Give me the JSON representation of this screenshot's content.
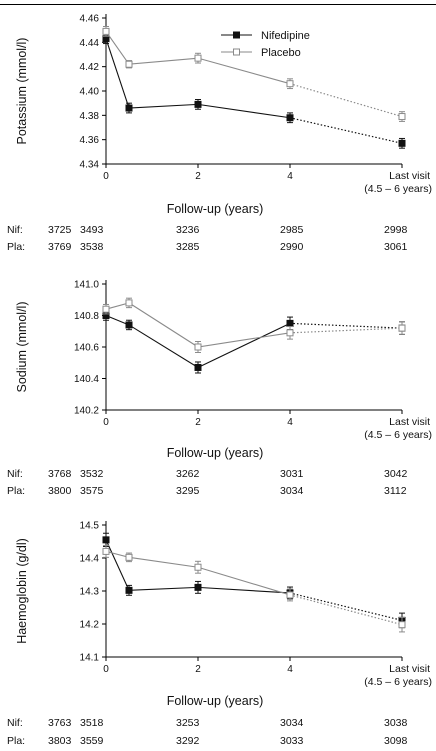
{
  "legend": {
    "items": [
      {
        "label": "Nifedipine",
        "marker": "filled-square",
        "color": "#111111"
      },
      {
        "label": "Placebo",
        "marker": "open-square",
        "color": "#8a8a8a"
      }
    ]
  },
  "chart_data": [
    {
      "type": "line",
      "ylabel": "Potassium (mmol/l)",
      "xlabel": "Follow-up (years)",
      "ylim": [
        4.34,
        4.46
      ],
      "yticks": [
        "4.34",
        "4.36",
        "4.38",
        "4.40",
        "4.42",
        "4.44",
        "4.46"
      ],
      "xticks": [
        "0",
        "2",
        "4"
      ],
      "last_visit_label": [
        "Last visit",
        "(4.5 – 6 years)"
      ],
      "x": [
        0,
        0.5,
        2,
        4,
        6
      ],
      "series": [
        {
          "name": "Nifedipine",
          "values": [
            4.443,
            4.386,
            4.389,
            4.378,
            4.357
          ],
          "err": [
            0.004,
            0.004,
            0.004,
            0.004,
            0.004
          ]
        },
        {
          "name": "Placebo",
          "values": [
            4.449,
            4.422,
            4.427,
            4.406,
            4.379
          ],
          "err": [
            0.004,
            0.003,
            0.004,
            0.004,
            0.004
          ]
        }
      ],
      "n_table": {
        "rows": [
          {
            "label": "Nif:",
            "counts": [
              "3725",
              "3493",
              "3236",
              "2985",
              "2998"
            ]
          },
          {
            "label": "Pla:",
            "counts": [
              "3769",
              "3538",
              "3285",
              "2990",
              "3061"
            ]
          }
        ]
      }
    },
    {
      "type": "line",
      "ylabel": "Sodium (mmol/l)",
      "xlabel": "Follow-up (years)",
      "ylim": [
        140.2,
        141.0
      ],
      "yticks": [
        "140.2",
        "140.4",
        "140.6",
        "140.8",
        "141.0"
      ],
      "xticks": [
        "0",
        "2",
        "4"
      ],
      "last_visit_label": [
        "Last visit",
        "(4.5 – 6 years)"
      ],
      "x": [
        0,
        0.5,
        2,
        4,
        6
      ],
      "series": [
        {
          "name": "Nifedipine",
          "values": [
            140.8,
            140.74,
            140.47,
            140.75,
            140.72
          ],
          "err": [
            0.03,
            0.03,
            0.035,
            0.04,
            0.04
          ]
        },
        {
          "name": "Placebo",
          "values": [
            140.84,
            140.88,
            140.6,
            140.69,
            140.72
          ],
          "err": [
            0.03,
            0.03,
            0.035,
            0.04,
            0.04
          ]
        }
      ],
      "n_table": {
        "rows": [
          {
            "label": "Nif:",
            "counts": [
              "3768",
              "3532",
              "3262",
              "3031",
              "3042"
            ]
          },
          {
            "label": "Pla:",
            "counts": [
              "3800",
              "3575",
              "3295",
              "3034",
              "3112"
            ]
          }
        ]
      }
    },
    {
      "type": "line",
      "ylabel": "Haemoglobin (g/dl)",
      "xlabel": "Follow-up (years)",
      "ylim": [
        14.1,
        14.5
      ],
      "yticks": [
        "14.1",
        "14.2",
        "14.3",
        "14.4",
        "14.5"
      ],
      "xticks": [
        "0",
        "2",
        "4"
      ],
      "last_visit_label": [
        "Last visit",
        "(4.5 – 6 years)"
      ],
      "x": [
        0,
        0.5,
        2,
        4,
        6
      ],
      "series": [
        {
          "name": "Nifedipine",
          "values": [
            14.455,
            14.302,
            14.311,
            14.294,
            14.211
          ],
          "err": [
            0.02,
            0.015,
            0.018,
            0.018,
            0.022
          ]
        },
        {
          "name": "Placebo",
          "values": [
            14.42,
            14.402,
            14.372,
            14.288,
            14.198
          ],
          "err": [
            0.018,
            0.013,
            0.018,
            0.018,
            0.022
          ]
        }
      ],
      "n_table": {
        "rows": [
          {
            "label": "Nif:",
            "counts": [
              "3763",
              "3518",
              "3253",
              "3034",
              "3038"
            ]
          },
          {
            "label": "Pla:",
            "counts": [
              "3803",
              "3559",
              "3292",
              "3033",
              "3098"
            ]
          }
        ]
      }
    }
  ]
}
